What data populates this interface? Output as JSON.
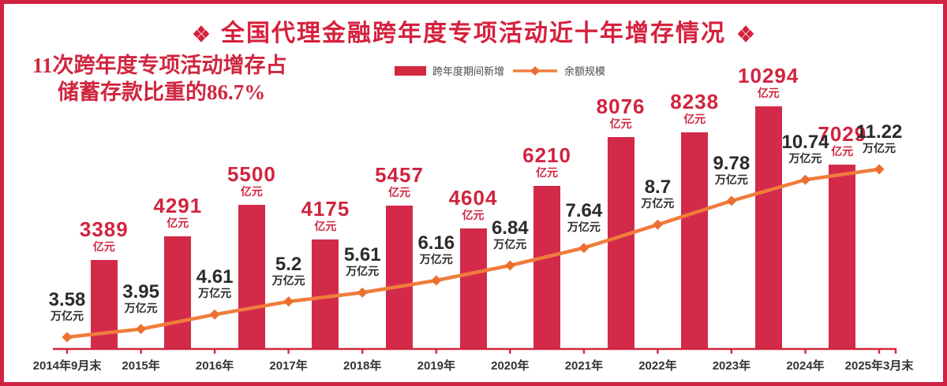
{
  "title": {
    "text": "全国代理金融跨年度专项活动近十年增存情况",
    "color": "#d5213d"
  },
  "icons": {
    "title_ornament": "four-diamond-cluster-icon",
    "legend_bar_swatch": "red-rect",
    "legend_line_swatch": "orange-line-with-diamond"
  },
  "annotation": {
    "line1": "11次跨年度专项活动增存占",
    "line2": "储蓄存款比重的86.7%",
    "color": "#d0263f"
  },
  "legend": [
    {
      "label": "跨年度期间新增",
      "color": "#d2283f",
      "type": "bar"
    },
    {
      "label": "余额规模",
      "color": "#f07c3c",
      "type": "line"
    }
  ],
  "colors": {
    "crimson": "#d32a4a",
    "orange_line": "#f07c3c",
    "orange_marker": "#eb6f2f",
    "dark_text": "#2b2b2b",
    "border": "#cf2342"
  },
  "chart_data": {
    "type": "bar",
    "subtype": "bar+line combo",
    "categories": [
      "2014年9月末",
      "2015年",
      "2016年",
      "2017年",
      "2018年",
      "2019年",
      "2020年",
      "2021年",
      "2022年",
      "2023年",
      "2024年",
      "2025年3月末"
    ],
    "series": [
      {
        "name": "跨年度期间新增",
        "type": "bar",
        "unit": "亿元",
        "color": "#d32a4a",
        "align": "between-categories",
        "values": [
          3389,
          4291,
          5500,
          4175,
          5457,
          4604,
          6210,
          8076,
          8238,
          10294,
          7029
        ]
      },
      {
        "name": "余额规模",
        "type": "line",
        "unit": "万亿元",
        "color": "#f07c3c",
        "align": "on-categories",
        "values": [
          3.58,
          3.95,
          4.61,
          5.2,
          5.61,
          6.16,
          6.84,
          7.64,
          8.7,
          9.78,
          10.74,
          11.22
        ]
      }
    ],
    "value_labels": "every point labeled",
    "grid": false,
    "legend_position": "top-center",
    "note": "tallest bar (10294) is visually truncated in source graphic"
  }
}
